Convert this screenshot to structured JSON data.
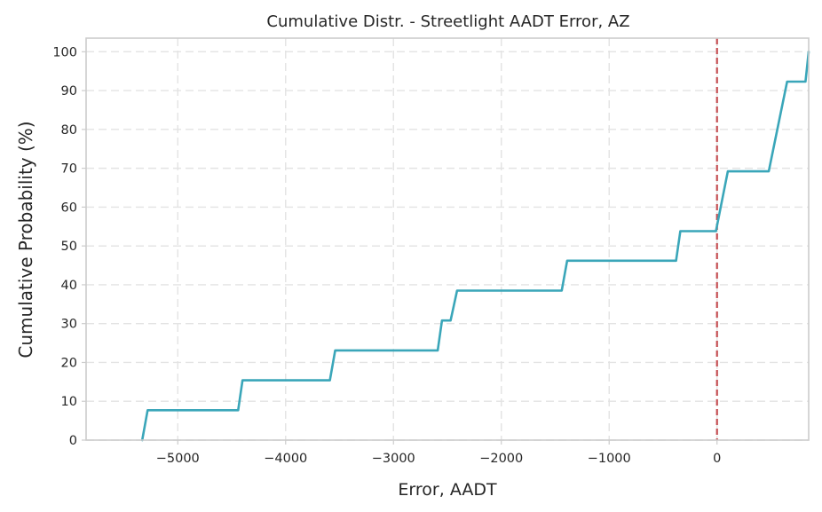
{
  "chart_data": {
    "type": "line",
    "title": "Cumulative Distr. - Streetlight AADT Error, AZ",
    "xlabel": "Error, AADT",
    "ylabel": "Cumulative Probability (%)",
    "xlim": [
      -5850,
      850
    ],
    "ylim": [
      0,
      103.5
    ],
    "x_ticks": [
      -5000,
      -4000,
      -3000,
      -2000,
      -1000,
      0
    ],
    "x_tick_labels": [
      "−5000",
      "−4000",
      "−3000",
      "−2000",
      "−1000",
      "0"
    ],
    "y_ticks": [
      0,
      10,
      20,
      30,
      40,
      50,
      60,
      70,
      80,
      90,
      100
    ],
    "y_tick_labels": [
      "0",
      "10",
      "20",
      "30",
      "40",
      "50",
      "60",
      "70",
      "80",
      "90",
      "100"
    ],
    "grid": true,
    "series": [
      {
        "color": "#3aa6b9",
        "x": [
          -5330,
          -5280,
          -4440,
          -4400,
          -3590,
          -3540,
          -2590,
          -2550,
          -2470,
          -2410,
          -1440,
          -1390,
          -380,
          -340,
          -10,
          100,
          480,
          650,
          820,
          850
        ],
        "y": [
          0,
          7.7,
          7.7,
          15.4,
          15.4,
          23.1,
          23.1,
          30.8,
          30.8,
          38.5,
          38.5,
          46.2,
          46.2,
          53.8,
          53.8,
          69.2,
          69.2,
          92.3,
          92.3,
          100
        ]
      }
    ],
    "reference_line": {
      "orientation": "vertical",
      "x": 0,
      "color": "#c44e52",
      "style": "dashed"
    }
  }
}
